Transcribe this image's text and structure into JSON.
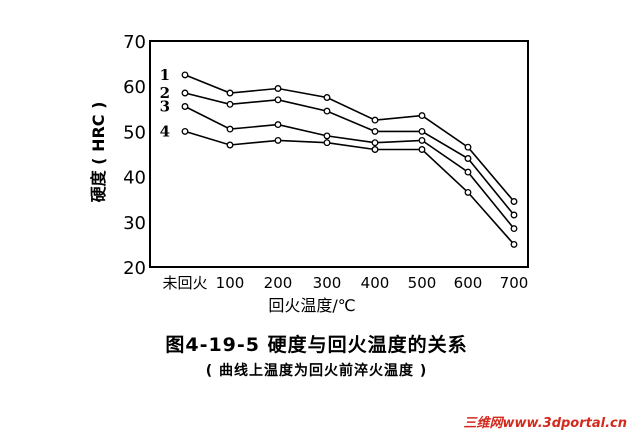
{
  "chart_data": {
    "type": "line",
    "ylabel": "硬度 ( HRC )",
    "xlabel": "回火温度/℃",
    "categories": [
      "未回火",
      "100",
      "200",
      "300",
      "400",
      "500",
      "600",
      "700"
    ],
    "y_ticks": [
      "20",
      "30",
      "40",
      "50",
      "60",
      "70"
    ],
    "ylim": [
      20,
      70
    ],
    "grid": false,
    "series": [
      {
        "name": "1",
        "values": [
          62.5,
          58.5,
          59.5,
          57.5,
          52.5,
          53.5,
          46.5,
          34.5
        ]
      },
      {
        "name": "2",
        "values": [
          58.5,
          56.0,
          57.0,
          54.5,
          50.0,
          50.0,
          44.0,
          31.5
        ]
      },
      {
        "name": "3",
        "values": [
          55.5,
          50.5,
          51.5,
          49.0,
          47.5,
          48.0,
          41.0,
          28.5
        ]
      },
      {
        "name": "4",
        "values": [
          50.0,
          47.0,
          48.0,
          47.5,
          46.0,
          46.0,
          36.5,
          25.0
        ]
      }
    ]
  },
  "figure_title": "图4-19-5  硬度与回火温度的关系",
  "figure_subtitle": "( 曲线上温度为回火前淬火温度 )",
  "watermark": "三维网www.3dportal.cn"
}
